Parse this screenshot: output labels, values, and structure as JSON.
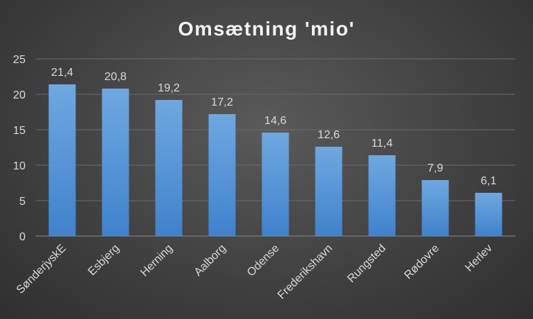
{
  "chart_data": {
    "type": "bar",
    "title": "Omsætning 'mio'",
    "categories": [
      "SønderjyskE",
      "Esbjerg",
      "Herning",
      "Aalborg",
      "Odense",
      "Frederikshavn",
      "Rungsted",
      "Rødovre",
      "Herlev"
    ],
    "values": [
      21.4,
      20.8,
      19.2,
      17.2,
      14.6,
      12.6,
      11.4,
      7.9,
      6.1
    ],
    "data_labels": [
      "21,4",
      "20,8",
      "19,2",
      "17,2",
      "14,6",
      "12,6",
      "11,4",
      "7,9",
      "6,1"
    ],
    "y_ticks": [
      "0",
      "5",
      "10",
      "15",
      "20",
      "25"
    ],
    "ylim": [
      0,
      25
    ],
    "grid": true,
    "legend": "none",
    "bar_color_top": "#6fa8e0",
    "bar_color_bottom": "#3f82cc"
  }
}
